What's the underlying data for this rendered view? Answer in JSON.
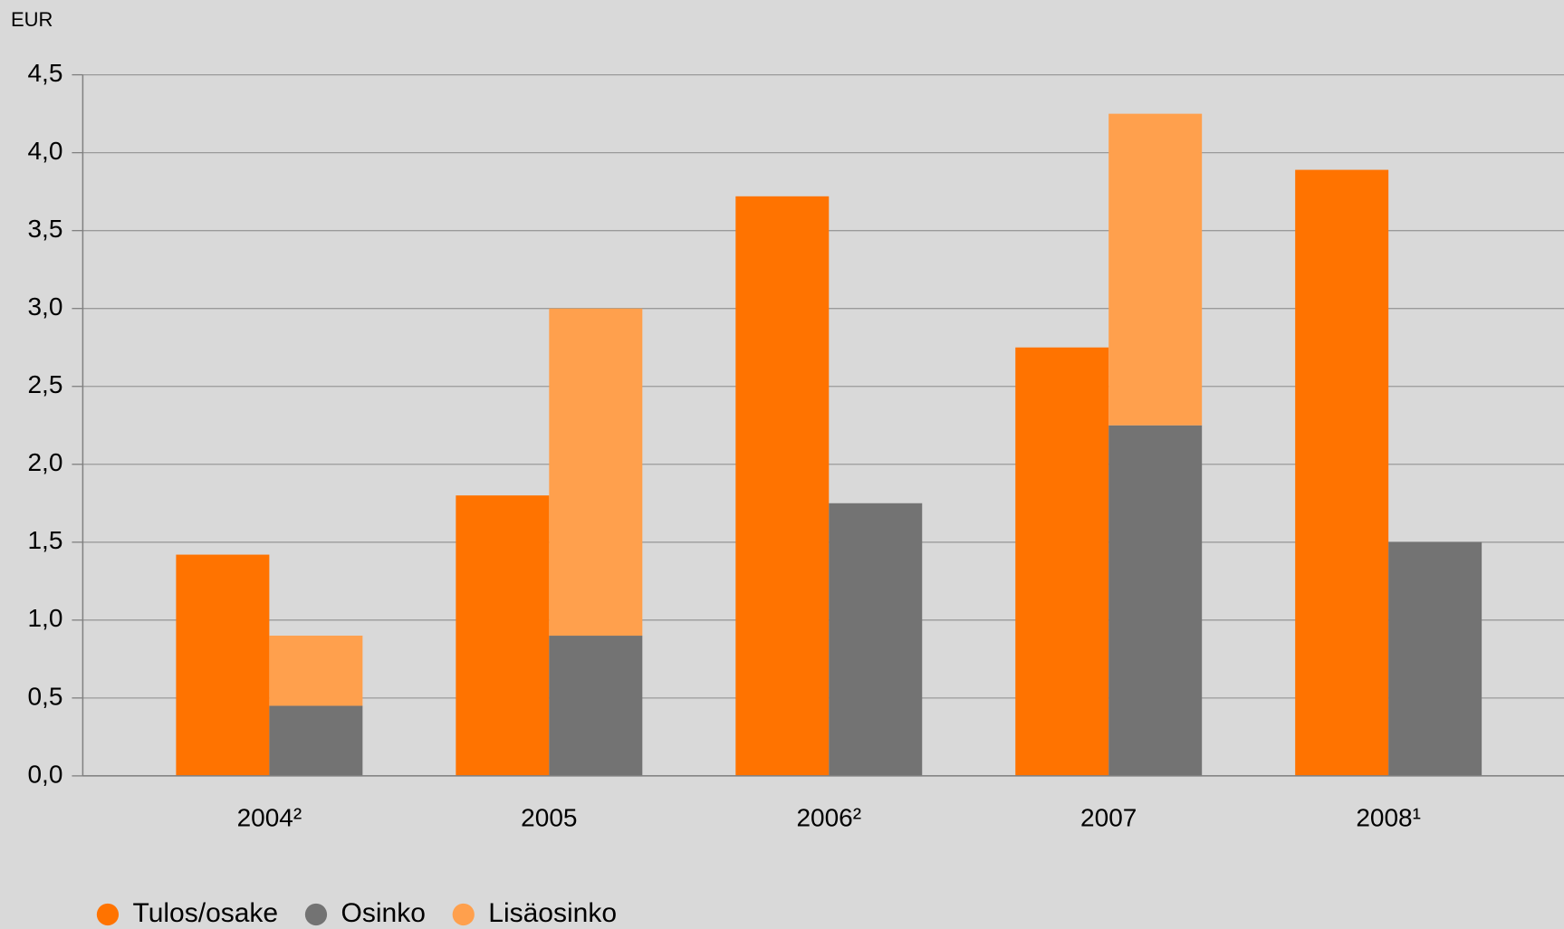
{
  "chart_data": {
    "type": "bar",
    "y_label": "EUR",
    "categories": [
      "2004²",
      "2005",
      "2006²",
      "2007",
      "2008¹"
    ],
    "series": [
      {
        "name": "Tulos/osake",
        "color": "#ff7300",
        "values": [
          1.42,
          1.8,
          3.72,
          2.75,
          3.89
        ]
      },
      {
        "name": "Osinko",
        "color": "#737373",
        "values": [
          0.45,
          0.9,
          1.75,
          2.25,
          1.5
        ]
      },
      {
        "name": "Lisäosinko",
        "color": "#ffa04d",
        "values": [
          0.45,
          2.1,
          null,
          2.0,
          null
        ]
      }
    ],
    "ylim": [
      0,
      4.5
    ],
    "yticks": [
      {
        "value": 0,
        "label": "0,0"
      },
      {
        "value": 0.5,
        "label": "0,5"
      },
      {
        "value": 1,
        "label": "1,0"
      },
      {
        "value": 1.5,
        "label": "1,5"
      },
      {
        "value": 2,
        "label": "2,0"
      },
      {
        "value": 2.5,
        "label": "2,5"
      },
      {
        "value": 3,
        "label": "3,0"
      },
      {
        "value": 3.5,
        "label": "3,5"
      },
      {
        "value": 4,
        "label": "4,0"
      },
      {
        "value": 4.5,
        "label": "4,5"
      }
    ],
    "grid": true
  }
}
